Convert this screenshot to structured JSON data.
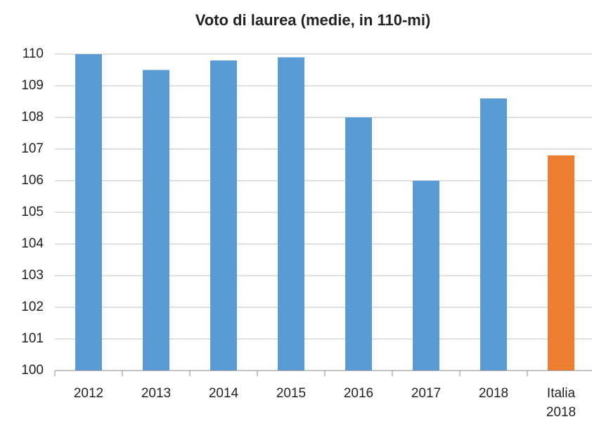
{
  "chart_data": {
    "type": "bar",
    "title": "Voto di laurea (medie, in 110-mi)",
    "categories": [
      "2012",
      "2013",
      "2014",
      "2015",
      "2016",
      "2017",
      "2018",
      "Italia 2018"
    ],
    "values": [
      110,
      109.5,
      109.8,
      109.9,
      108,
      106,
      108.6,
      106.8
    ],
    "colors": [
      "#5b9bd5",
      "#5b9bd5",
      "#5b9bd5",
      "#5b9bd5",
      "#5b9bd5",
      "#5b9bd5",
      "#5b9bd5",
      "#ed7d31"
    ],
    "ylim": [
      100,
      110
    ],
    "yticks": [
      100,
      101,
      102,
      103,
      104,
      105,
      106,
      107,
      108,
      109,
      110
    ],
    "grid": true
  }
}
